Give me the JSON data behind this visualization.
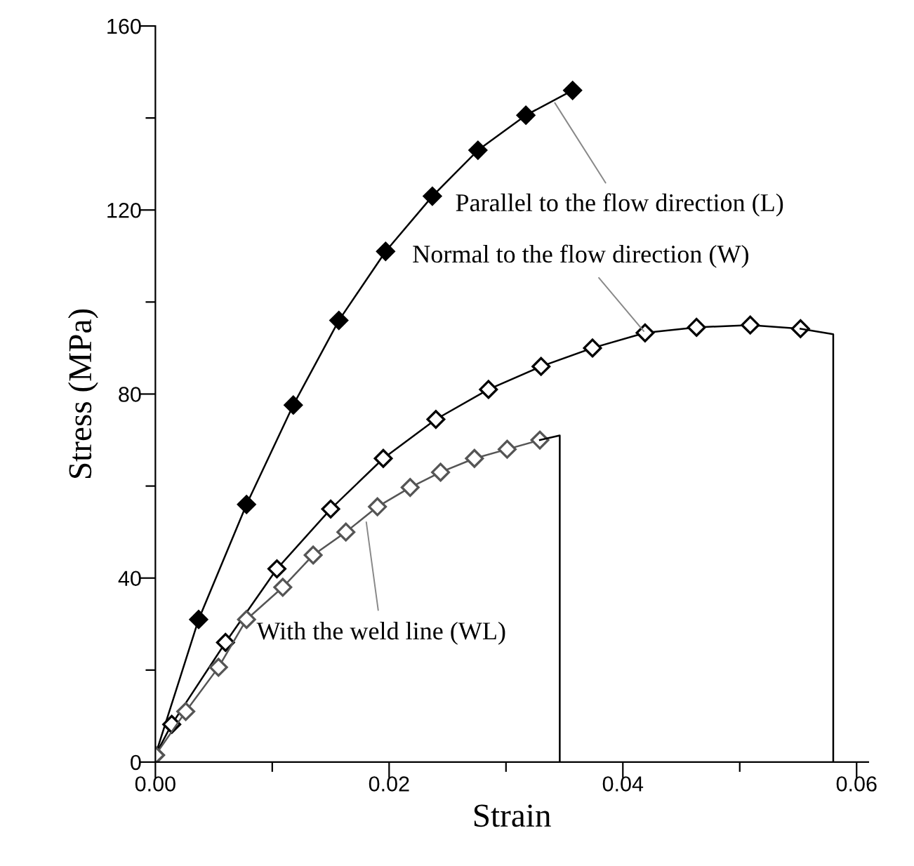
{
  "chart_data": {
    "type": "line",
    "xlabel": "Strain",
    "ylabel": "Stress (MPa)",
    "xlim": [
      0,
      0.061
    ],
    "ylim": [
      0,
      160
    ],
    "xticks": [
      {
        "value": 0,
        "label": "0.00"
      },
      {
        "value": 0.01,
        "label": null
      },
      {
        "value": 0.02,
        "label": "0.02"
      },
      {
        "value": 0.03,
        "label": null
      },
      {
        "value": 0.04,
        "label": "0.04"
      },
      {
        "value": 0.05,
        "label": null
      },
      {
        "value": 0.06,
        "label": "0.06"
      }
    ],
    "yticks": [
      0,
      {
        "value": 20,
        "label": null
      },
      40,
      {
        "value": 60,
        "label": null
      },
      80,
      {
        "value": 100,
        "label": null
      },
      120,
      {
        "value": 140,
        "label": null
      },
      160
    ],
    "grid": false,
    "legend": false,
    "line_style": "solid",
    "series": [
      {
        "color": "#000000",
        "marker": "diamond",
        "x": [
          0,
          0.0037,
          0.0078,
          0.0118,
          0.0157,
          0.0197,
          0.0237,
          0.0276,
          0.0317,
          0.0357
        ],
        "values": [
          1.5,
          31,
          56,
          77.6,
          96,
          111,
          123,
          133,
          140.6,
          146
        ]
      },
      {
        "color": "#000000",
        "marker": "diamond",
        "x": [
          0,
          0.0014,
          0.006,
          0.0104,
          0.015,
          0.0195,
          0.024,
          0.0285,
          0.033,
          0.0374,
          0.0419,
          0.0463,
          0.0509,
          0.0552
        ],
        "values": [
          1.5,
          8.2,
          26,
          42,
          55,
          66,
          74.5,
          81,
          86,
          90,
          93.3,
          94.5,
          95,
          94.2
        ]
      },
      {
        "color": "#555555",
        "marker": "diamond",
        "x": [
          0,
          0.0026,
          0.0054,
          0.0078,
          0.0109,
          0.0135,
          0.0163,
          0.019,
          0.0218,
          0.0244,
          0.0273,
          0.0301,
          0.0329
        ],
        "values": [
          1.5,
          11,
          20.6,
          31,
          38,
          45,
          50,
          55.5,
          59.7,
          63,
          66,
          68,
          70
        ]
      },
      {
        "color": "#000000",
        "marker": "none",
        "x": [
          0.0552,
          0.058,
          0.058
        ],
        "values": [
          94.2,
          93,
          0
        ]
      },
      {
        "color": "#000000",
        "marker": "none",
        "x": [
          0.0329,
          0.0346,
          0.0346
        ],
        "values": [
          70,
          71,
          0
        ]
      }
    ],
    "annotations": [
      {
        "text": "Parallel to the flow direction (L)",
        "x": 0.034,
        "y": 144
      },
      {
        "text": "Normal to the flow direction (W)",
        "x": 0.042,
        "y": 93
      },
      {
        "text": "With the weld line (WL)",
        "x": 0.018,
        "y": 53
      }
    ]
  }
}
